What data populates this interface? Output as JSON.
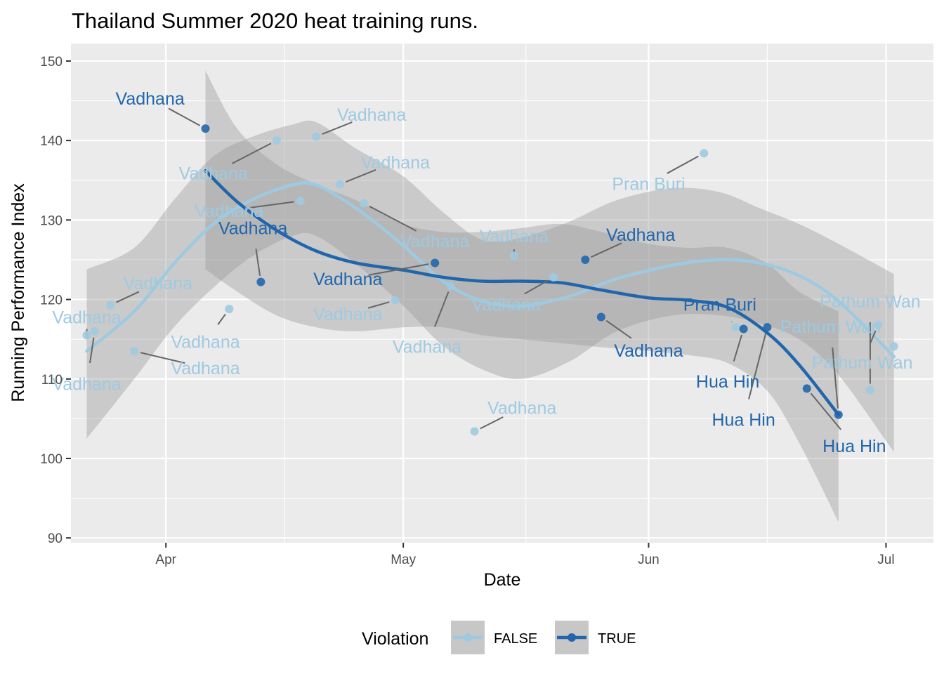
{
  "chart_data": {
    "type": "scatter",
    "title": "Thailand Summer 2020 heat training runs.",
    "xlabel": "Date",
    "ylabel": "Running Performance Index",
    "x_ticks": [
      {
        "date": "2020-04-01",
        "label": "Apr"
      },
      {
        "date": "2020-05-01",
        "label": "May"
      },
      {
        "date": "2020-06-01",
        "label": "Jun"
      },
      {
        "date": "2020-07-01",
        "label": "Jul"
      }
    ],
    "xlim": [
      "2020-03-20",
      "2020-07-07"
    ],
    "y_ticks": [
      90,
      100,
      110,
      120,
      130,
      140,
      150
    ],
    "ylim": [
      89.4,
      152.2
    ],
    "grid": true,
    "legend": {
      "title": "Violation",
      "placement": "bottom",
      "entries": [
        {
          "label": "FALSE",
          "color": "#9ECAE1"
        },
        {
          "label": "TRUE",
          "color": "#2166AC"
        }
      ]
    },
    "colors": {
      "FALSE": "#9ECAE1",
      "TRUE": "#2166AC",
      "panel": "#EBEBEB",
      "ribbon": "#999999"
    },
    "points": [
      {
        "date": "2020-03-22",
        "y": 115.5,
        "violation": false,
        "label": "Vadhana"
      },
      {
        "date": "2020-03-23",
        "y": 116.0,
        "violation": false,
        "label": "Vadhana"
      },
      {
        "date": "2020-03-25",
        "y": 119.3,
        "violation": false,
        "label": "Vadhana"
      },
      {
        "date": "2020-03-28",
        "y": 113.5,
        "violation": false,
        "label": "Vadhana"
      },
      {
        "date": "2020-04-06",
        "y": 141.5,
        "violation": true,
        "label": "Vadhana"
      },
      {
        "date": "2020-04-09",
        "y": 118.8,
        "violation": false,
        "label": "Vadhana"
      },
      {
        "date": "2020-04-13",
        "y": 122.2,
        "violation": true,
        "label": "Vadhana"
      },
      {
        "date": "2020-04-15",
        "y": 140.0,
        "violation": false,
        "label": "Vadhana"
      },
      {
        "date": "2020-04-18",
        "y": 132.4,
        "violation": false,
        "label": "Vadhana"
      },
      {
        "date": "2020-04-20",
        "y": 140.5,
        "violation": false,
        "label": "Vadhana"
      },
      {
        "date": "2020-04-23",
        "y": 134.5,
        "violation": false,
        "label": "Vadhana"
      },
      {
        "date": "2020-04-26",
        "y": 132.1,
        "violation": false,
        "label": "Vadhana"
      },
      {
        "date": "2020-04-30",
        "y": 119.9,
        "violation": false,
        "label": "Vadhana"
      },
      {
        "date": "2020-05-05",
        "y": 124.6,
        "violation": true,
        "label": "Vadhana"
      },
      {
        "date": "2020-05-07",
        "y": 121.7,
        "violation": false,
        "label": "Vadhana"
      },
      {
        "date": "2020-05-10",
        "y": 103.4,
        "violation": false,
        "label": "Vadhana"
      },
      {
        "date": "2020-05-15",
        "y": 125.5,
        "violation": false,
        "label": "Vadhana"
      },
      {
        "date": "2020-05-20",
        "y": 122.8,
        "violation": false,
        "label": "Vadhana"
      },
      {
        "date": "2020-05-24",
        "y": 125.0,
        "violation": true,
        "label": "Vadhana"
      },
      {
        "date": "2020-05-26",
        "y": 117.8,
        "violation": true,
        "label": "Vadhana"
      },
      {
        "date": "2020-06-08",
        "y": 138.4,
        "violation": false,
        "label": "Pran Buri"
      },
      {
        "date": "2020-06-12",
        "y": 116.5,
        "violation": false,
        "label": "Pathum Wan"
      },
      {
        "date": "2020-06-13",
        "y": 116.3,
        "violation": true,
        "label": "Hua Hin"
      },
      {
        "date": "2020-06-16",
        "y": 116.5,
        "violation": true,
        "label": "Pran Buri"
      },
      {
        "date": "2020-06-21",
        "y": 108.8,
        "violation": true,
        "label": "Hua Hin"
      },
      {
        "date": "2020-06-25",
        "y": 105.5,
        "violation": true,
        "label": "Hua Hin"
      },
      {
        "date": "2020-06-29",
        "y": 108.6,
        "violation": false,
        "label": "Pathum Wan"
      },
      {
        "date": "2020-06-30",
        "y": 116.8,
        "violation": false,
        "label": "Pathum Wan"
      },
      {
        "date": "2020-07-02",
        "y": 114.1,
        "violation": false,
        "label": "Pathum Wan"
      }
    ],
    "smooth": [
      {
        "violation": false,
        "x": [
          "2020-03-22",
          "2020-03-28",
          "2020-04-02",
          "2020-04-07",
          "2020-04-12",
          "2020-04-17",
          "2020-04-20",
          "2020-04-25",
          "2020-05-01",
          "2020-05-06",
          "2020-05-11",
          "2020-05-16",
          "2020-05-22",
          "2020-05-28",
          "2020-06-04",
          "2020-06-10",
          "2020-06-15",
          "2020-06-20",
          "2020-06-25",
          "2020-07-02"
        ],
        "y": [
          113.5,
          118.5,
          124.5,
          129.5,
          132.6,
          134.4,
          134.4,
          131.5,
          126.8,
          122.3,
          119.8,
          119.2,
          120.4,
          122.6,
          124.3,
          125.0,
          124.6,
          123.0,
          119.8,
          112.8
        ],
        "lower": [
          102.5,
          110.0,
          116.5,
          121.5,
          125.5,
          128.0,
          128.0,
          124.5,
          119.2,
          114.2,
          111.2,
          110.0,
          112.2,
          116.0,
          118.0,
          118.0,
          117.0,
          115.0,
          110.5,
          100.8
        ],
        "upper": [
          123.8,
          126.5,
          132.5,
          138.0,
          140.5,
          142.0,
          142.3,
          139.0,
          135.5,
          131.0,
          127.5,
          127.8,
          129.8,
          132.5,
          134.0,
          133.5,
          131.5,
          129.5,
          127.0,
          123.2
        ]
      },
      {
        "violation": true,
        "x": [
          "2020-04-06",
          "2020-04-10",
          "2020-04-15",
          "2020-04-20",
          "2020-04-25",
          "2020-05-01",
          "2020-05-06",
          "2020-05-11",
          "2020-05-16",
          "2020-05-21",
          "2020-05-26",
          "2020-06-01",
          "2020-06-06",
          "2020-06-11",
          "2020-06-16",
          "2020-06-20",
          "2020-06-25"
        ],
        "y": [
          136.2,
          132.3,
          128.7,
          126.1,
          124.6,
          123.7,
          122.8,
          122.3,
          122.3,
          122.1,
          121.2,
          120.2,
          119.9,
          119.0,
          115.8,
          111.8,
          105.5
        ],
        "lower": [
          123.8,
          121.0,
          118.0,
          116.5,
          116.0,
          116.5,
          116.5,
          115.5,
          115.0,
          114.5,
          114.0,
          113.5,
          113.0,
          112.0,
          108.5,
          102.0,
          92.0
        ],
        "upper": [
          148.8,
          141.5,
          137.0,
          134.5,
          132.5,
          129.5,
          128.5,
          128.5,
          129.0,
          129.5,
          128.5,
          127.0,
          126.5,
          126.5,
          124.5,
          121.0,
          118.5
        ]
      }
    ],
    "labels": [
      {
        "text": "Vadhana",
        "violation": false,
        "at": [
          "2020-03-22",
          117.0
        ]
      },
      {
        "text": "Vadhana",
        "violation": false,
        "at": [
          "2020-03-22",
          108.6
        ]
      },
      {
        "text": "Vadhana",
        "violation": false,
        "at": [
          "2020-03-31",
          121.3
        ]
      },
      {
        "text": "Vadhana",
        "violation": false,
        "at": [
          "2020-04-06",
          110.6
        ]
      },
      {
        "text": "Vadhana",
        "violation": true,
        "at": [
          "2020-03-30",
          144.5
        ]
      },
      {
        "text": "Vadhana",
        "violation": false,
        "at": [
          "2020-04-06",
          113.9
        ]
      },
      {
        "text": "Vadhana",
        "violation": true,
        "at": [
          "2020-04-12",
          128.2
        ]
      },
      {
        "text": "Vadhana",
        "violation": false,
        "at": [
          "2020-04-07",
          135.1
        ]
      },
      {
        "text": "Vadhana",
        "violation": false,
        "at": [
          "2020-04-09",
          130.4
        ]
      },
      {
        "text": "Vadhana",
        "violation": false,
        "at": [
          "2020-04-27",
          142.5
        ]
      },
      {
        "text": "Vadhana",
        "violation": false,
        "at": [
          "2020-04-30",
          136.5
        ]
      },
      {
        "text": "Vadhana",
        "violation": false,
        "at": [
          "2020-05-05",
          126.6
        ]
      },
      {
        "text": "Vadhana",
        "violation": false,
        "at": [
          "2020-04-24",
          117.4
        ]
      },
      {
        "text": "Vadhana",
        "violation": true,
        "at": [
          "2020-04-24",
          121.8
        ]
      },
      {
        "text": "Vadhana",
        "violation": false,
        "at": [
          "2020-05-04",
          113.3
        ]
      },
      {
        "text": "Vadhana",
        "violation": false,
        "at": [
          "2020-05-16",
          105.6
        ]
      },
      {
        "text": "Vadhana",
        "violation": false,
        "at": [
          "2020-05-15",
          127.2
        ]
      },
      {
        "text": "Vadhana",
        "violation": false,
        "at": [
          "2020-05-14",
          118.6
        ]
      },
      {
        "text": "Vadhana",
        "violation": true,
        "at": [
          "2020-05-31",
          127.4
        ]
      },
      {
        "text": "Vadhana",
        "violation": true,
        "at": [
          "2020-06-01",
          112.8
        ]
      },
      {
        "text": "Pran Buri",
        "violation": false,
        "at": [
          "2020-06-01",
          133.8
        ]
      },
      {
        "text": "Pran Buri",
        "violation": true,
        "at": [
          "2020-06-10",
          118.6
        ]
      },
      {
        "text": "Hua Hin",
        "violation": true,
        "at": [
          "2020-06-11",
          108.9
        ]
      },
      {
        "text": "Hua Hin",
        "violation": true,
        "at": [
          "2020-06-13",
          104.1
        ]
      },
      {
        "text": "Hua Hin",
        "violation": true,
        "at": [
          "2020-06-27",
          100.8
        ]
      },
      {
        "text": "Pathum Wan",
        "violation": false,
        "at": [
          "2020-06-24",
          115.8
        ]
      },
      {
        "text": "Pathum Wan",
        "violation": false,
        "at": [
          "2020-06-29",
          119.0
        ]
      },
      {
        "text": "Pathum Wan",
        "violation": false,
        "at": [
          "2020-06-28",
          111.3
        ]
      }
    ]
  }
}
